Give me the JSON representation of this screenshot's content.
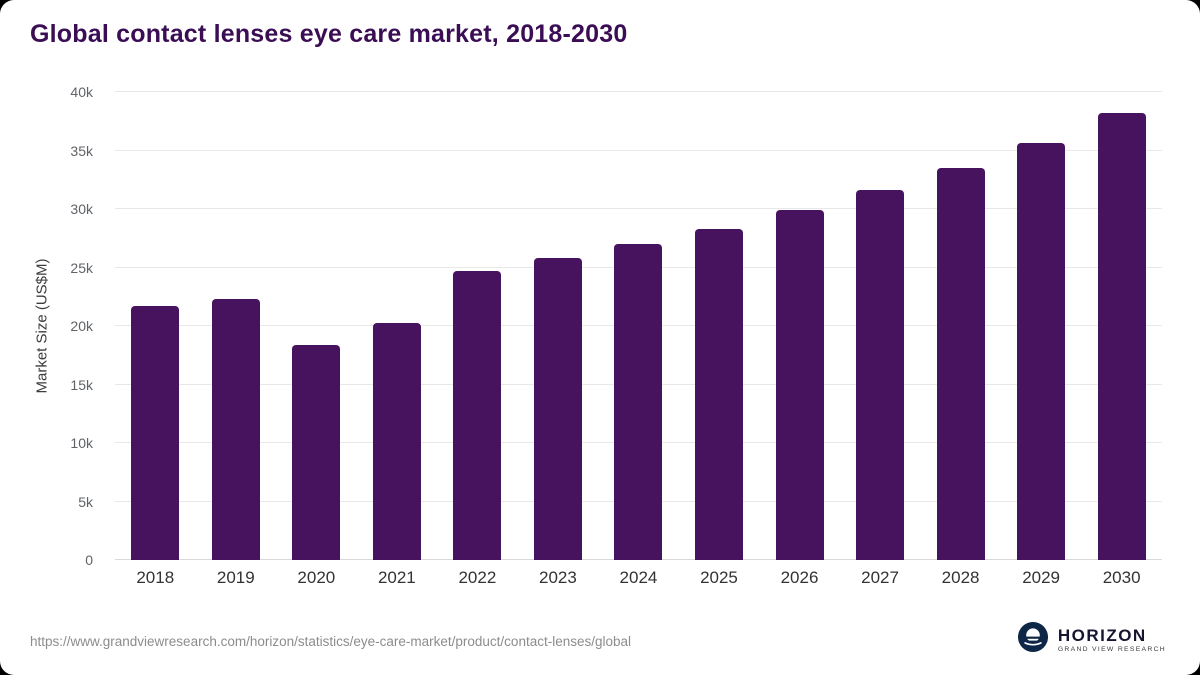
{
  "title": "Global contact lenses eye care market, 2018-2030",
  "source_url": "https://www.grandviewresearch.com/horizon/statistics/eye-care-market/product/contact-lenses/global",
  "brand": {
    "name": "HORIZON",
    "subtitle": "GRAND VIEW RESEARCH"
  },
  "colors": {
    "bar": "#47125e",
    "title": "#3a0d55",
    "grid": "#e8e8e8",
    "logo_navy": "#0e2747"
  },
  "chart_data": {
    "type": "bar",
    "title": "Global contact lenses eye care market, 2018-2030",
    "xlabel": "",
    "ylabel": "Market Size (US$M)",
    "ylim": [
      0,
      40000
    ],
    "grid": true,
    "legend": "none",
    "categories": [
      "2018",
      "2019",
      "2020",
      "2021",
      "2022",
      "2023",
      "2024",
      "2025",
      "2026",
      "2027",
      "2028",
      "2029",
      "2030"
    ],
    "values": [
      21700,
      22300,
      18400,
      20300,
      24700,
      25800,
      27000,
      28300,
      29900,
      31600,
      33500,
      35600,
      38200
    ],
    "yticks": [
      {
        "value": 0,
        "label": "0"
      },
      {
        "value": 5000,
        "label": "5k"
      },
      {
        "value": 10000,
        "label": "10k"
      },
      {
        "value": 15000,
        "label": "15k"
      },
      {
        "value": 20000,
        "label": "20k"
      },
      {
        "value": 25000,
        "label": "25k"
      },
      {
        "value": 30000,
        "label": "30k"
      },
      {
        "value": 35000,
        "label": "35k"
      },
      {
        "value": 40000,
        "label": "40k"
      }
    ]
  }
}
